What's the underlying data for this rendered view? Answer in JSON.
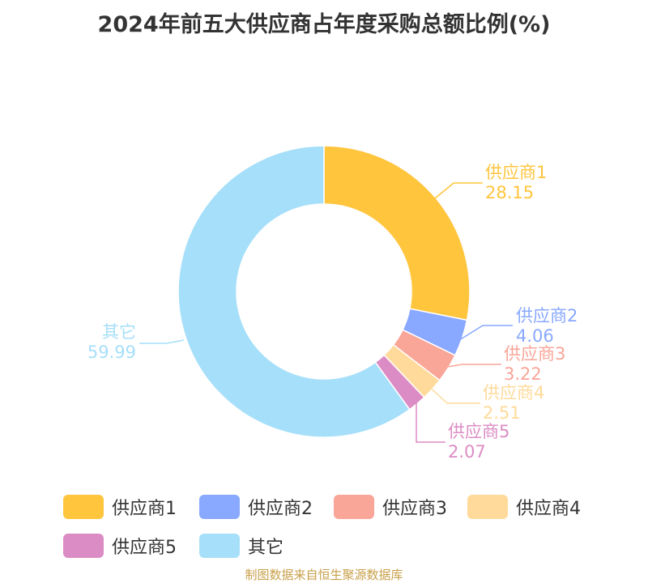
{
  "title": "2024年前五大供应商占年度采购总额比例(%)",
  "footer": "制图数据来自恒生聚源数据库",
  "chart_data": {
    "type": "pie",
    "donut": true,
    "title": "2024年前五大供应商占年度采购总额比例(%)",
    "legend_position": "bottom",
    "slices": [
      {
        "label": "供应商1",
        "value": 28.15,
        "color": "#FFC53D"
      },
      {
        "label": "供应商2",
        "value": 4.06,
        "color": "#89A8FF"
      },
      {
        "label": "供应商3",
        "value": 3.22,
        "color": "#F9A598"
      },
      {
        "label": "供应商4",
        "value": 2.51,
        "color": "#FFDA9A"
      },
      {
        "label": "供应商5",
        "value": 2.07,
        "color": "#DC8CC4"
      },
      {
        "label": "其它",
        "value": 59.99,
        "color": "#A6DFF9"
      }
    ]
  }
}
